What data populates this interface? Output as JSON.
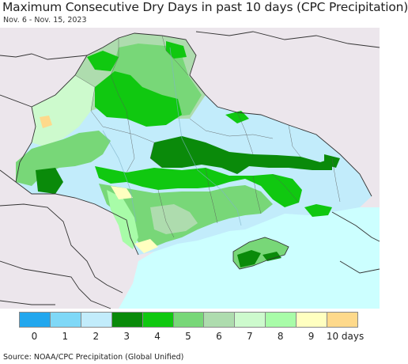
{
  "title": "Maximum Consecutive Dry Days in past 10 days (CPC Precipitation)",
  "subtitle": "Nov. 6 - Nov. 15, 2023",
  "source": "Source: NOAA/CPC Precipitation (Global Unified)",
  "colors": {
    "sea": "#ccffff",
    "land_outside": "#ece6ec",
    "border": "#333333"
  },
  "legend": {
    "colors": [
      "#22a7ee",
      "#7fd8f7",
      "#c2ecfb",
      "#0a8a0a",
      "#10c810",
      "#78d778",
      "#aedcae",
      "#cdfacd",
      "#a8fca8",
      "#ffffc0",
      "#fed98b"
    ],
    "labels": [
      "0",
      "1",
      "2",
      "3",
      "4",
      "5",
      "6",
      "7",
      "8",
      "9",
      "10 days"
    ]
  }
}
